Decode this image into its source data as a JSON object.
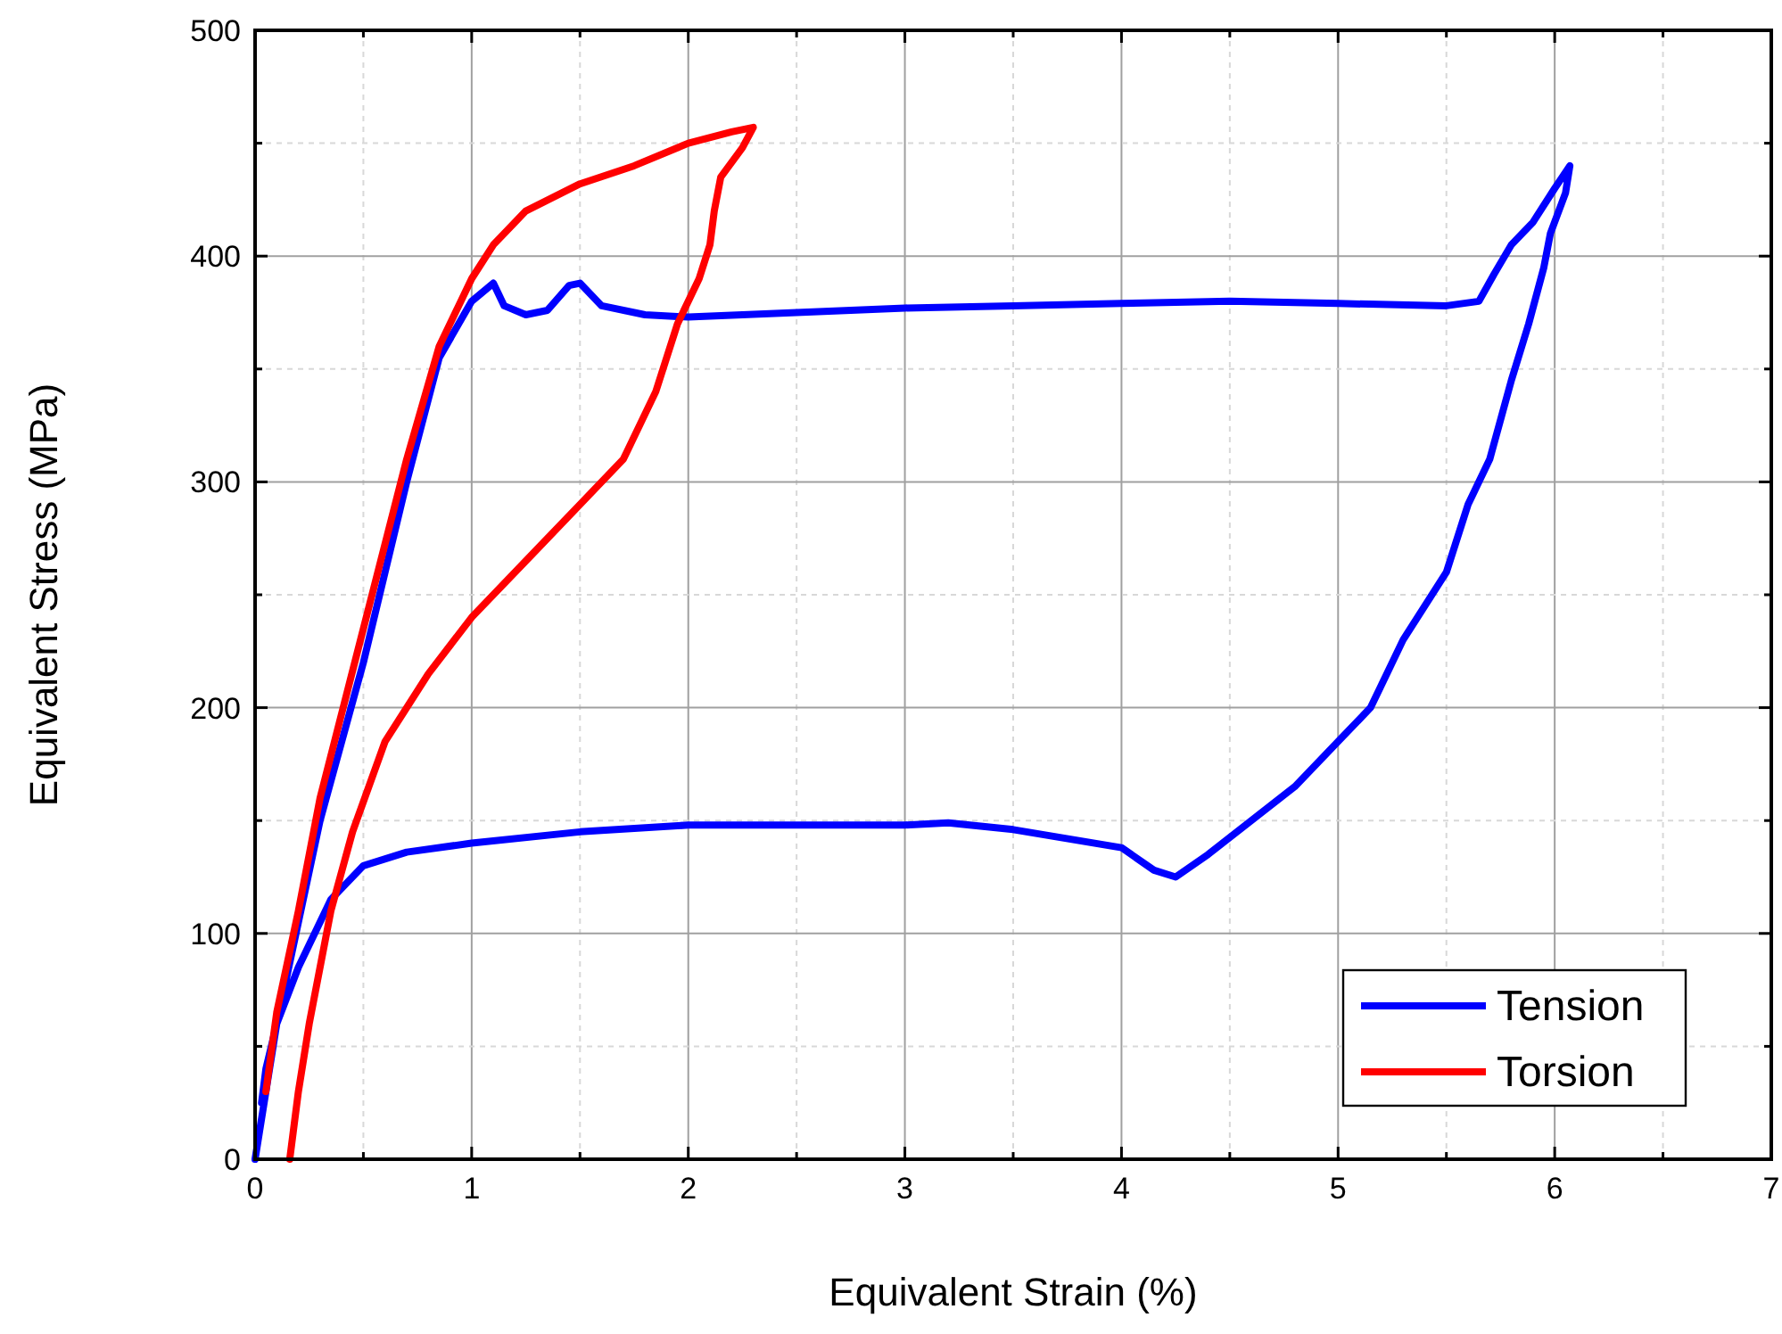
{
  "chart_data": {
    "type": "line",
    "xlabel": "Equivalent Strain (%)",
    "ylabel": "Equivalent Stress (MPa)",
    "xlim": [
      0,
      7
    ],
    "ylim": [
      0,
      500
    ],
    "xticks": [
      0,
      {
        "value": 0.5,
        "label": null
      },
      1,
      {
        "value": 1.5,
        "label": null
      },
      2,
      {
        "value": 2.5,
        "label": null
      },
      3,
      {
        "value": 3.5,
        "label": null
      },
      4,
      {
        "value": 4.5,
        "label": null
      },
      5,
      {
        "value": 5.5,
        "label": null
      },
      6,
      {
        "value": 6.5,
        "label": null
      },
      7
    ],
    "yticks": [
      0,
      {
        "value": 50,
        "label": null
      },
      100,
      {
        "value": 150,
        "label": null
      },
      200,
      {
        "value": 250,
        "label": null
      },
      300,
      {
        "value": 350,
        "label": null
      },
      400,
      {
        "value": 450,
        "label": null
      },
      500
    ],
    "grid": true,
    "legend": "bottom right",
    "line_style": "solid",
    "marker": "none",
    "series": [
      {
        "name": "Tension",
        "color": "#0000ff",
        "x": [
          0,
          0.1,
          0.3,
          0.5,
          0.7,
          0.85,
          1.0,
          1.1,
          1.15,
          1.25,
          1.35,
          1.45,
          1.5,
          1.6,
          1.8,
          2.0,
          2.5,
          3,
          3.5,
          4,
          4.5,
          5,
          5.5,
          5.65,
          5.72,
          5.8,
          5.9,
          6.0,
          6.07,
          6.05,
          5.98,
          5.95,
          5.88,
          5.8,
          5.7,
          5.6,
          5.5,
          5.3,
          5.15,
          5.0,
          4.8,
          4.6,
          4.4,
          4.25,
          4.15,
          4.0,
          3.5,
          3.2,
          3.0,
          2.5,
          2.0,
          1.5,
          1.0,
          0.7,
          0.5,
          0.35,
          0.2,
          0.1,
          0.05,
          0.03
        ],
        "values": [
          0,
          60,
          150,
          220,
          300,
          355,
          380,
          388,
          378,
          374,
          376,
          387,
          388,
          378,
          374,
          373,
          375,
          377,
          378,
          379,
          380,
          379,
          378,
          380,
          392,
          405,
          415,
          430,
          440,
          428,
          410,
          395,
          370,
          345,
          310,
          290,
          260,
          230,
          200,
          185,
          165,
          150,
          135,
          125,
          128,
          138,
          146,
          149,
          148,
          148,
          148,
          145,
          140,
          136,
          130,
          115,
          85,
          60,
          40,
          25
        ]
      },
      {
        "name": "Torsion",
        "color": "#ff0000",
        "x": [
          0.05,
          0.1,
          0.2,
          0.3,
          0.5,
          0.7,
          0.85,
          1.0,
          1.1,
          1.25,
          1.5,
          1.75,
          2.0,
          2.2,
          2.3,
          2.25,
          2.15,
          2.12,
          2.1,
          2.05,
          1.95,
          1.85,
          1.7,
          1.5,
          1.3,
          1.0,
          0.8,
          0.6,
          0.45,
          0.35,
          0.25,
          0.2,
          0.16
        ],
        "values": [
          30,
          65,
          110,
          160,
          235,
          310,
          360,
          390,
          405,
          420,
          432,
          440,
          450,
          455,
          457,
          448,
          435,
          420,
          405,
          390,
          370,
          340,
          310,
          290,
          270,
          240,
          215,
          185,
          145,
          110,
          60,
          30,
          0
        ]
      }
    ]
  }
}
